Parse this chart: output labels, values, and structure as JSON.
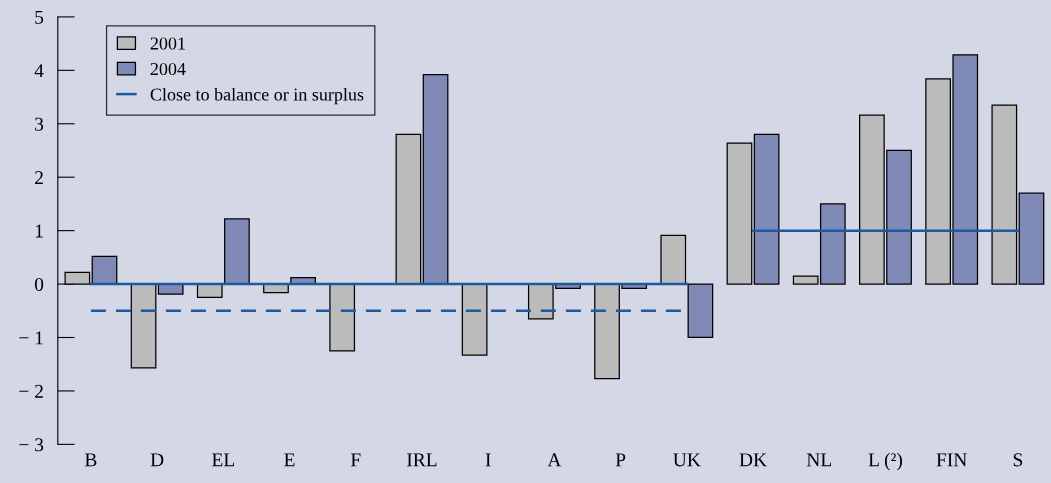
{
  "chart_data": {
    "type": "bar",
    "categories": [
      "B",
      "D",
      "EL",
      "E",
      "F",
      "IRL",
      "I",
      "A",
      "P",
      "UK",
      "DK",
      "NL",
      "L (²)",
      "FIN",
      "S"
    ],
    "series": [
      {
        "name": "2001",
        "color": "#bbbbbb",
        "values": [
          0.22,
          -1.57,
          -0.25,
          -0.16,
          -1.25,
          2.8,
          -1.33,
          -0.65,
          -1.77,
          0.91,
          2.64,
          0.15,
          3.16,
          3.84,
          3.35
        ]
      },
      {
        "name": "2004",
        "color": "#7e89b6",
        "values": [
          0.52,
          -0.19,
          1.22,
          0.12,
          null,
          3.92,
          null,
          -0.08,
          -0.08,
          -1.0,
          2.8,
          1.5,
          2.5,
          4.29,
          1.7
        ]
      },
      {
        "name": "Close to balance or in surplus",
        "type": "line",
        "color": "#1f5aa0",
        "line_style": "solid",
        "values": [
          0,
          0,
          0,
          0,
          0,
          0,
          0,
          0,
          0,
          0,
          null,
          null,
          null,
          null,
          null
        ]
      },
      {
        "type": "line",
        "color": "#1f5aa0",
        "line_style": "solid",
        "values": [
          null,
          null,
          null,
          null,
          null,
          null,
          null,
          null,
          null,
          null,
          1,
          1,
          1,
          1,
          1
        ]
      },
      {
        "type": "line",
        "color": "#1f5aa0",
        "line_style": "dashed",
        "values": [
          -0.5,
          -0.5,
          -0.5,
          -0.5,
          -0.5,
          -0.5,
          -0.5,
          -0.5,
          -0.5,
          -0.5,
          null,
          null,
          null,
          null,
          null
        ]
      }
    ],
    "ylim": [
      -3,
      5
    ],
    "yticks": [
      {
        "value": -3,
        "label": "− 3"
      },
      {
        "value": -2,
        "label": "− 2"
      },
      {
        "value": -1,
        "label": "− 1"
      },
      0,
      1,
      2,
      3,
      4,
      5
    ],
    "grid": false,
    "legend": "top left"
  }
}
